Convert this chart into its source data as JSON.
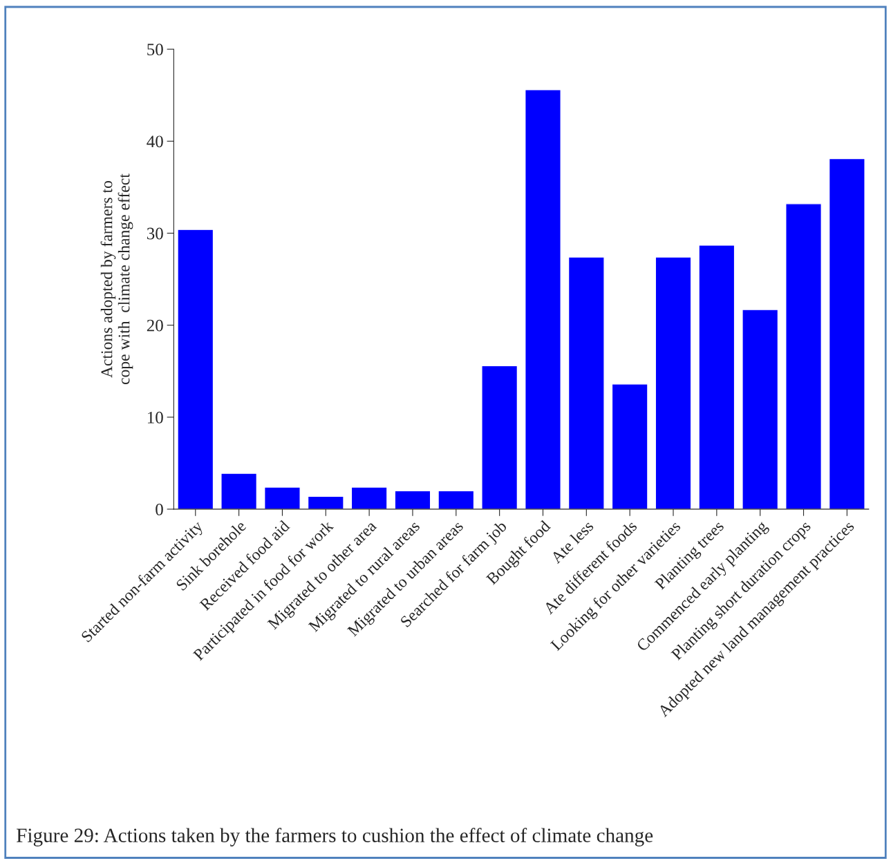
{
  "chart_data": {
    "type": "bar",
    "ylabel": "Actions adopted by farmers to\ncope with  climate change effect",
    "categories": [
      "Started non-farm activity",
      "Sink borehole",
      "Received food aid",
      "Participated in food for work",
      "Migrated to other area",
      "Migrated to rural areas",
      "Migrated to urban areas",
      "Searched for farm job",
      "Bought food",
      "Ate less",
      "Ate different foods",
      "Looking for other varieties",
      "Planting trees",
      "Commenced early planting",
      "Planting short duration crops",
      "Adopted new land management practices"
    ],
    "values": [
      30.4,
      3.9,
      2.4,
      1.4,
      2.4,
      2.0,
      2.0,
      15.6,
      45.6,
      27.4,
      13.6,
      27.4,
      28.7,
      21.7,
      33.2,
      38.1
    ],
    "color": "#0000ff",
    "ylim": [
      0,
      50
    ],
    "yticks": [
      0,
      10,
      20,
      30,
      40,
      50
    ],
    "grid": false,
    "legend": false,
    "annotations": [
      "Figure 29: Actions taken by the farmers to cushion the effect of climate change"
    ]
  }
}
